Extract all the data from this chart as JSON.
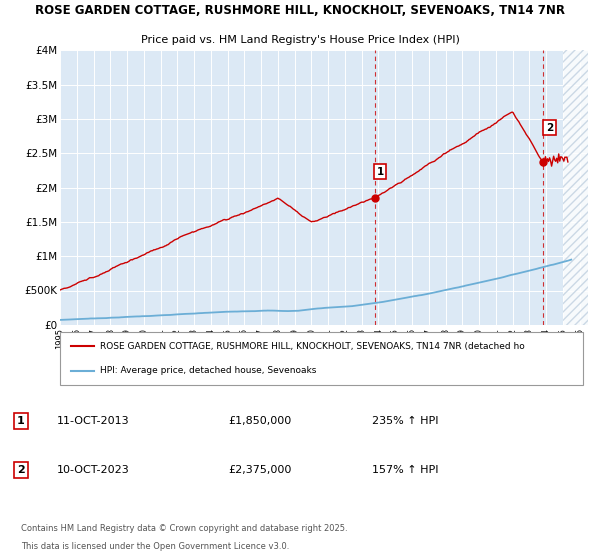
{
  "title_line1": "ROSE GARDEN COTTAGE, RUSHMORE HILL, KNOCKHOLT, SEVENOAKS, TN14 7NR",
  "title_line2": "Price paid vs. HM Land Registry's House Price Index (HPI)",
  "x_start_year": 1995,
  "x_end_year": 2026,
  "y_min": 0,
  "y_max": 4000000,
  "y_ticks": [
    0,
    500000,
    1000000,
    1500000,
    2000000,
    2500000,
    3000000,
    3500000,
    4000000
  ],
  "y_tick_labels": [
    "£0",
    "£500K",
    "£1M",
    "£1.5M",
    "£2M",
    "£2.5M",
    "£3M",
    "£3.5M",
    "£4M"
  ],
  "hpi_color": "#6baed6",
  "property_color": "#cc0000",
  "marker1_year": 2013.79,
  "marker1_value": 1850000,
  "marker1_label": "1",
  "marker2_year": 2023.79,
  "marker2_value": 2375000,
  "marker2_label": "2",
  "sale1_date": "11-OCT-2013",
  "sale1_price": "£1,850,000",
  "sale1_hpi": "235% ↑ HPI",
  "sale2_date": "10-OCT-2023",
  "sale2_price": "£2,375,000",
  "sale2_hpi": "157% ↑ HPI",
  "legend_property": "ROSE GARDEN COTTAGE, RUSHMORE HILL, KNOCKHOLT, SEVENOAKS, TN14 7NR (detached ho",
  "legend_hpi": "HPI: Average price, detached house, Sevenoaks",
  "footnote1": "Contains HM Land Registry data © Crown copyright and database right 2025.",
  "footnote2": "This data is licensed under the Open Government Licence v3.0.",
  "background_color": "#ffffff",
  "plot_bg_color": "#dce9f5",
  "hatch_color": "#c0d0e0"
}
